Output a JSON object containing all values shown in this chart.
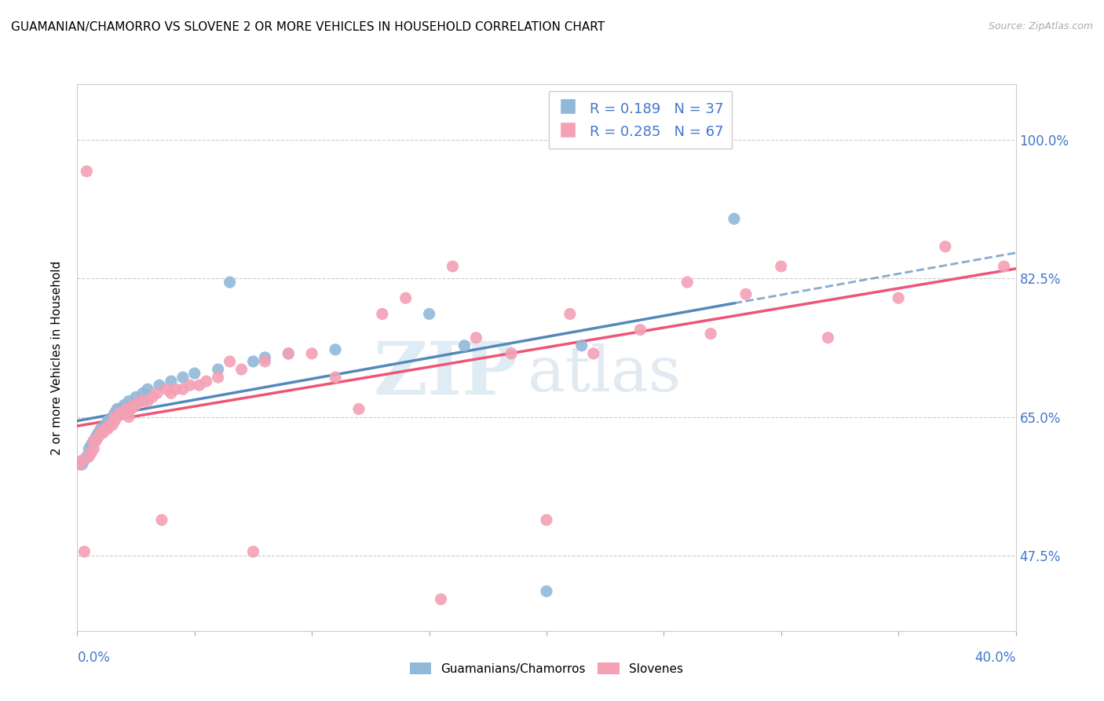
{
  "title": "GUAMANIAN/CHAMORRO VS SLOVENE 2 OR MORE VEHICLES IN HOUSEHOLD CORRELATION CHART",
  "source": "Source: ZipAtlas.com",
  "ylabel": "2 or more Vehicles in Household",
  "ytick_labels": [
    "47.5%",
    "65.0%",
    "82.5%",
    "100.0%"
  ],
  "ytick_values": [
    0.475,
    0.65,
    0.825,
    1.0
  ],
  "xlim": [
    0.0,
    0.4
  ],
  "ylim": [
    0.38,
    1.07
  ],
  "R_blue": 0.189,
  "N_blue": 37,
  "R_pink": 0.285,
  "N_pink": 67,
  "legend_label_blue": "Guamanians/Chamorros",
  "legend_label_pink": "Slovenes",
  "color_blue": "#92b8d8",
  "color_pink": "#f4a0b5",
  "line_color_blue": "#5588bb",
  "line_color_pink": "#ee5577",
  "text_color_blue": "#4477cc",
  "watermark_zip": "ZIP",
  "watermark_atlas": "atlas",
  "blue_x": [
    0.002,
    0.003,
    0.004,
    0.005,
    0.006,
    0.007,
    0.008,
    0.009,
    0.01,
    0.011,
    0.012,
    0.013,
    0.014,
    0.015,
    0.016,
    0.017,
    0.018,
    0.02,
    0.022,
    0.025,
    0.028,
    0.03,
    0.035,
    0.04,
    0.045,
    0.05,
    0.06,
    0.065,
    0.075,
    0.08,
    0.09,
    0.11,
    0.15,
    0.165,
    0.2,
    0.215,
    0.28
  ],
  "blue_y": [
    0.59,
    0.595,
    0.6,
    0.61,
    0.615,
    0.62,
    0.625,
    0.63,
    0.635,
    0.635,
    0.64,
    0.645,
    0.645,
    0.65,
    0.655,
    0.66,
    0.66,
    0.665,
    0.67,
    0.675,
    0.68,
    0.685,
    0.69,
    0.695,
    0.7,
    0.705,
    0.71,
    0.82,
    0.72,
    0.725,
    0.73,
    0.735,
    0.78,
    0.74,
    0.43,
    0.74,
    0.9
  ],
  "pink_x": [
    0.001,
    0.002,
    0.003,
    0.004,
    0.005,
    0.006,
    0.007,
    0.007,
    0.008,
    0.009,
    0.01,
    0.011,
    0.012,
    0.013,
    0.014,
    0.015,
    0.016,
    0.016,
    0.017,
    0.018,
    0.019,
    0.02,
    0.021,
    0.022,
    0.023,
    0.024,
    0.025,
    0.027,
    0.028,
    0.03,
    0.032,
    0.034,
    0.036,
    0.038,
    0.04,
    0.042,
    0.045,
    0.048,
    0.052,
    0.055,
    0.06,
    0.065,
    0.07,
    0.075,
    0.08,
    0.09,
    0.1,
    0.11,
    0.12,
    0.13,
    0.14,
    0.155,
    0.16,
    0.17,
    0.185,
    0.2,
    0.21,
    0.22,
    0.24,
    0.26,
    0.27,
    0.285,
    0.3,
    0.32,
    0.35,
    0.37,
    0.395
  ],
  "pink_y": [
    0.59,
    0.595,
    0.48,
    0.96,
    0.6,
    0.605,
    0.61,
    0.62,
    0.62,
    0.625,
    0.63,
    0.63,
    0.635,
    0.635,
    0.64,
    0.64,
    0.645,
    0.65,
    0.65,
    0.655,
    0.655,
    0.655,
    0.66,
    0.65,
    0.66,
    0.665,
    0.665,
    0.67,
    0.67,
    0.67,
    0.675,
    0.68,
    0.52,
    0.685,
    0.68,
    0.685,
    0.685,
    0.69,
    0.69,
    0.695,
    0.7,
    0.72,
    0.71,
    0.48,
    0.72,
    0.73,
    0.73,
    0.7,
    0.66,
    0.78,
    0.8,
    0.42,
    0.84,
    0.75,
    0.73,
    0.52,
    0.78,
    0.73,
    0.76,
    0.82,
    0.755,
    0.805,
    0.84,
    0.75,
    0.8,
    0.865,
    0.84
  ]
}
